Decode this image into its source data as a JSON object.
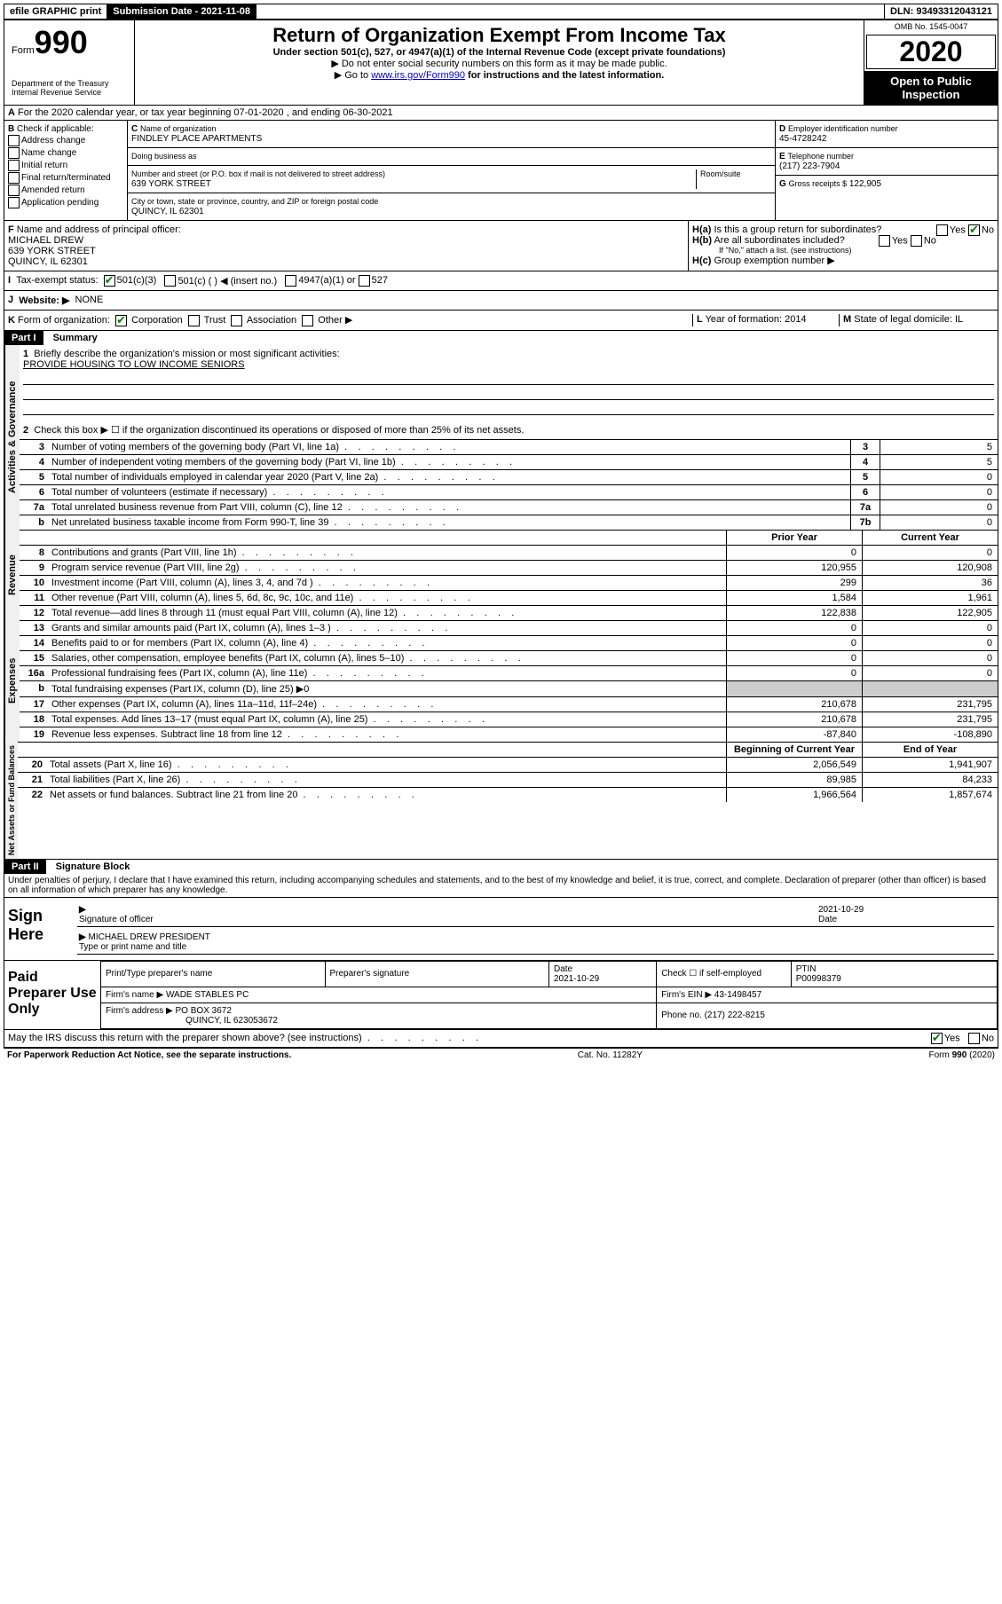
{
  "topbar": {
    "efile": "efile GRAPHIC print",
    "submission_label": "Submission Date - 2021-11-08",
    "dln_label": "DLN: 93493312043121"
  },
  "header": {
    "form_label": "Form",
    "form_number": "990",
    "dept1": "Department of the Treasury",
    "dept2": "Internal Revenue Service",
    "title": "Return of Organization Exempt From Income Tax",
    "subtitle": "Under section 501(c), 527, or 4947(a)(1) of the Internal Revenue Code (except private foundations)",
    "note1": "▶ Do not enter social security numbers on this form as it may be made public.",
    "note2_pre": "▶ Go to ",
    "note2_link": "www.irs.gov/Form990",
    "note2_post": " for instructions and the latest information.",
    "omb": "OMB No. 1545-0047",
    "year": "2020",
    "open_public": "Open to Public Inspection"
  },
  "A": {
    "text": "For the 2020 calendar year, or tax year beginning 07-01-2020    , and ending 06-30-2021"
  },
  "B": {
    "label": "Check if applicable:",
    "opts": [
      "Address change",
      "Name change",
      "Initial return",
      "Final return/terminated",
      "Amended return",
      "Application pending"
    ]
  },
  "C": {
    "name_label": "Name of organization",
    "name": "FINDLEY PLACE APARTMENTS",
    "dba_label": "Doing business as",
    "addr_label": "Number and street (or P.O. box if mail is not delivered to street address)",
    "room_label": "Room/suite",
    "addr": "639 YORK STREET",
    "city_label": "City or town, state or province, country, and ZIP or foreign postal code",
    "city": "QUINCY, IL  62301"
  },
  "D": {
    "label": "Employer identification number",
    "val": "45-4728242"
  },
  "E": {
    "label": "Telephone number",
    "val": "(217) 223-7904"
  },
  "G": {
    "label": "Gross receipts $",
    "val": "122,905"
  },
  "F": {
    "label": "Name and address of principal officer:",
    "name": "MICHAEL DREW",
    "addr1": "639 YORK STREET",
    "addr2": "QUINCY, IL  62301"
  },
  "H": {
    "a": "Is this a group return for subordinates?",
    "b": "Are all subordinates included?",
    "b_note": "If \"No,\" attach a list. (see instructions)",
    "c": "Group exemption number ▶",
    "yes": "Yes",
    "no": "No"
  },
  "I": {
    "label": "Tax-exempt status:",
    "o1": "501(c)(3)",
    "o2": "501(c) (   ) ◀ (insert no.)",
    "o3": "4947(a)(1) or",
    "o4": "527"
  },
  "J": {
    "label": "Website: ▶",
    "val": "NONE"
  },
  "K": {
    "label": "Form of organization:",
    "o1": "Corporation",
    "o2": "Trust",
    "o3": "Association",
    "o4": "Other ▶"
  },
  "L": {
    "label": "Year of formation:",
    "val": "2014"
  },
  "M": {
    "label": "State of legal domicile:",
    "val": "IL"
  },
  "part1": {
    "header": "Part I",
    "title": "Summary",
    "l1_label": "Briefly describe the organization's mission or most significant activities:",
    "l1_val": "PROVIDE HOUSING TO LOW INCOME SENIORS",
    "l2": "Check this box ▶ ☐  if the organization discontinued its operations or disposed of more than 25% of its net assets.",
    "sections": {
      "gov": "Activities & Governance",
      "rev": "Revenue",
      "exp": "Expenses",
      "net": "Net Assets or Fund Balances"
    },
    "lines_single": [
      {
        "n": "3",
        "d": "Number of voting members of the governing body (Part VI, line 1a)",
        "box": "3",
        "v": "5"
      },
      {
        "n": "4",
        "d": "Number of independent voting members of the governing body (Part VI, line 1b)",
        "box": "4",
        "v": "5"
      },
      {
        "n": "5",
        "d": "Total number of individuals employed in calendar year 2020 (Part V, line 2a)",
        "box": "5",
        "v": "0"
      },
      {
        "n": "6",
        "d": "Total number of volunteers (estimate if necessary)",
        "box": "6",
        "v": "0"
      },
      {
        "n": "7a",
        "d": "Total unrelated business revenue from Part VIII, column (C), line 12",
        "box": "7a",
        "v": "0"
      },
      {
        "n": "b",
        "d": "Net unrelated business taxable income from Form 990-T, line 39",
        "box": "7b",
        "v": "0"
      }
    ],
    "col_headers": {
      "prior": "Prior Year",
      "current": "Current Year",
      "beg": "Beginning of Current Year",
      "end": "End of Year"
    },
    "revenue": [
      {
        "n": "8",
        "d": "Contributions and grants (Part VIII, line 1h)",
        "p": "0",
        "c": "0"
      },
      {
        "n": "9",
        "d": "Program service revenue (Part VIII, line 2g)",
        "p": "120,955",
        "c": "120,908"
      },
      {
        "n": "10",
        "d": "Investment income (Part VIII, column (A), lines 3, 4, and 7d )",
        "p": "299",
        "c": "36"
      },
      {
        "n": "11",
        "d": "Other revenue (Part VIII, column (A), lines 5, 6d, 8c, 9c, 10c, and 11e)",
        "p": "1,584",
        "c": "1,961"
      },
      {
        "n": "12",
        "d": "Total revenue—add lines 8 through 11 (must equal Part VIII, column (A), line 12)",
        "p": "122,838",
        "c": "122,905"
      }
    ],
    "expenses": [
      {
        "n": "13",
        "d": "Grants and similar amounts paid (Part IX, column (A), lines 1–3 )",
        "p": "0",
        "c": "0"
      },
      {
        "n": "14",
        "d": "Benefits paid to or for members (Part IX, column (A), line 4)",
        "p": "0",
        "c": "0"
      },
      {
        "n": "15",
        "d": "Salaries, other compensation, employee benefits (Part IX, column (A), lines 5–10)",
        "p": "0",
        "c": "0"
      },
      {
        "n": "16a",
        "d": "Professional fundraising fees (Part IX, column (A), line 11e)",
        "p": "0",
        "c": "0"
      },
      {
        "n": "b",
        "d": "Total fundraising expenses (Part IX, column (D), line 25) ▶0",
        "p": "",
        "c": "",
        "shaded": true
      },
      {
        "n": "17",
        "d": "Other expenses (Part IX, column (A), lines 11a–11d, 11f–24e)",
        "p": "210,678",
        "c": "231,795"
      },
      {
        "n": "18",
        "d": "Total expenses. Add lines 13–17 (must equal Part IX, column (A), line 25)",
        "p": "210,678",
        "c": "231,795"
      },
      {
        "n": "19",
        "d": "Revenue less expenses. Subtract line 18 from line 12",
        "p": "-87,840",
        "c": "-108,890"
      }
    ],
    "netassets": [
      {
        "n": "20",
        "d": "Total assets (Part X, line 16)",
        "p": "2,056,549",
        "c": "1,941,907"
      },
      {
        "n": "21",
        "d": "Total liabilities (Part X, line 26)",
        "p": "89,985",
        "c": "84,233"
      },
      {
        "n": "22",
        "d": "Net assets or fund balances. Subtract line 21 from line 20",
        "p": "1,966,564",
        "c": "1,857,674"
      }
    ]
  },
  "part2": {
    "header": "Part II",
    "title": "Signature Block",
    "decl": "Under penalties of perjury, I declare that I have examined this return, including accompanying schedules and statements, and to the best of my knowledge and belief, it is true, correct, and complete. Declaration of preparer (other than officer) is based on all information of which preparer has any knowledge.",
    "sign_here": "Sign Here",
    "sig_officer": "Signature of officer",
    "sig_date": "Date",
    "sig_date_val": "2021-10-29",
    "sig_name": "MICHAEL DREW PRESIDENT",
    "sig_name_label": "Type or print name and title",
    "paid": "Paid Preparer Use Only",
    "prep_name_label": "Print/Type preparer's name",
    "prep_sig_label": "Preparer's signature",
    "prep_date_label": "Date",
    "prep_date_val": "2021-10-29",
    "prep_check": "Check ☐ if self-employed",
    "ptin_label": "PTIN",
    "ptin": "P00998379",
    "firm_name_label": "Firm's name    ▶",
    "firm_name": "WADE STABLES PC",
    "firm_ein_label": "Firm's EIN ▶",
    "firm_ein": "43-1498457",
    "firm_addr_label": "Firm's address ▶",
    "firm_addr1": "PO BOX 3672",
    "firm_addr2": "QUINCY, IL  623053672",
    "firm_phone_label": "Phone no.",
    "firm_phone": "(217) 222-8215",
    "irs_q": "May the IRS discuss this return with the preparer shown above? (see instructions)"
  },
  "footer": {
    "left": "For Paperwork Reduction Act Notice, see the separate instructions.",
    "mid": "Cat. No. 11282Y",
    "right": "Form 990 (2020)"
  }
}
